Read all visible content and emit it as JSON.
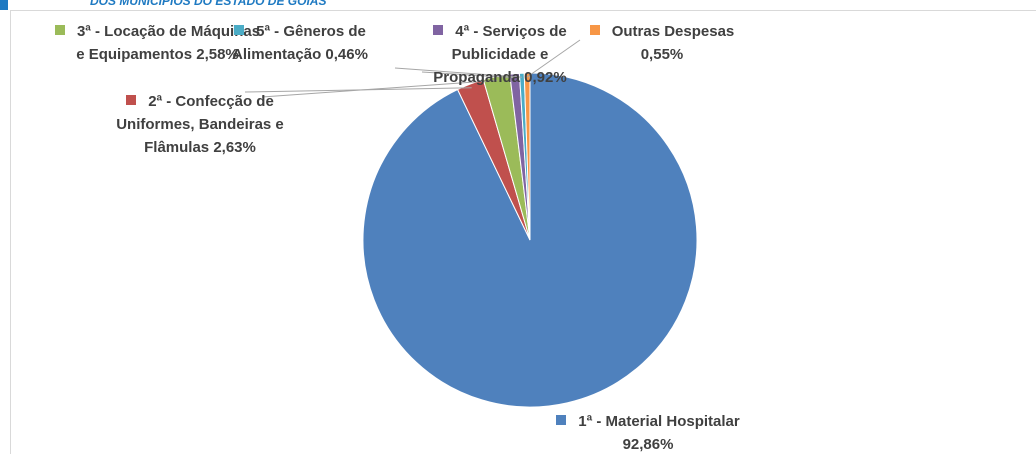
{
  "header_text": "DOS MUNICÍPIOS DO ESTADO DE GOIÁS",
  "chart_data": {
    "type": "pie",
    "categories": [
      "1ª - Material Hospitalar",
      "2ª - Confecção de Uniformes, Bandeiras e Flâmulas",
      "3ª - Locação de Máquinas e Equipamentos",
      "4ª - Serviços de Publicidade e Propaganda",
      "5ª - Gêneros de Alimentação",
      "Outras Despesas"
    ],
    "values": [
      92.86,
      2.63,
      2.58,
      0.92,
      0.46,
      0.55
    ],
    "value_labels": [
      "92,86%",
      "2,63%",
      "2,58%",
      "0,92%",
      "0,46%",
      "0,55%"
    ],
    "colors": [
      "#4f81bd",
      "#c0504d",
      "#9bbb59",
      "#8064a2",
      "#4bacc6",
      "#f79646"
    ]
  }
}
